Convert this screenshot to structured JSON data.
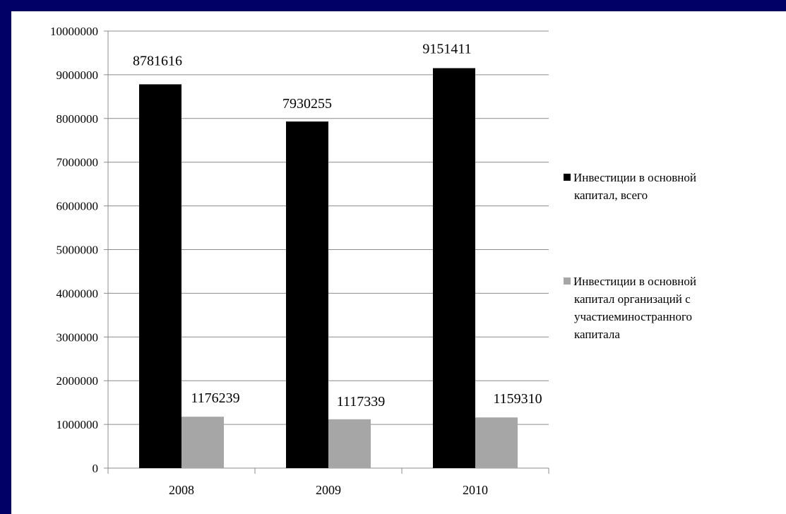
{
  "colors": {
    "background_border": "#000066",
    "card": "#ffffff",
    "grid": "#8c8c8c",
    "axis": "#8c8c8c"
  },
  "chart_data": {
    "type": "bar",
    "title": "",
    "xlabel": "",
    "ylabel": "",
    "categories": [
      "2008",
      "2009",
      "2010"
    ],
    "ylim": [
      0,
      10000000
    ],
    "yticks": [
      0,
      1000000,
      2000000,
      3000000,
      4000000,
      5000000,
      6000000,
      7000000,
      8000000,
      9000000,
      10000000
    ],
    "grid": true,
    "legend_position": "right",
    "series": [
      {
        "name": "Инвестиции в основной капитал, всего",
        "legend_lines": [
          "Инвестиции в основной",
          "капитал, всего"
        ],
        "color": "#000000",
        "values": [
          8781616,
          7930255,
          9151411
        ],
        "labels": [
          "8781616",
          "7930255",
          "9151411"
        ]
      },
      {
        "name": "Инвестиции в основной капитал организаций с участиеминостранного капитала",
        "legend_lines": [
          "Инвестиции в основной",
          "капитал организаций с",
          "участиеминостранного",
          "капитала"
        ],
        "color": "#a6a6a6",
        "values": [
          1176239,
          1117339,
          1159310
        ],
        "labels": [
          "1176239",
          "1117339",
          "1159310"
        ]
      }
    ]
  }
}
